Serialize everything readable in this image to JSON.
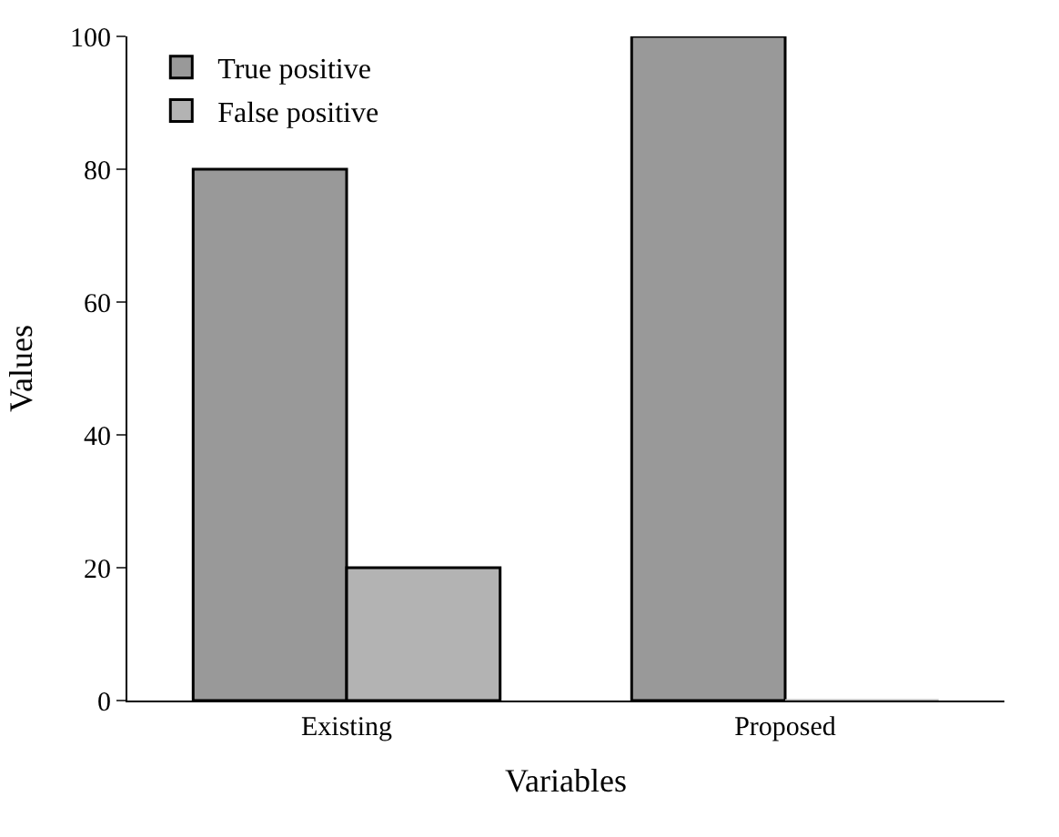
{
  "chart_data": {
    "type": "bar",
    "xlabel": "Variables",
    "ylabel": "Values",
    "categories": [
      "Existing",
      "Proposed"
    ],
    "series": [
      {
        "name": "True positive",
        "color": "#999999",
        "values": [
          80,
          100
        ]
      },
      {
        "name": "False positive",
        "color": "#b3b3b3",
        "values": [
          20,
          0
        ]
      }
    ],
    "ylim": [
      0,
      100
    ],
    "yticks": [
      0,
      20,
      40,
      60,
      80,
      100
    ],
    "grid": false,
    "legend": "top left"
  }
}
